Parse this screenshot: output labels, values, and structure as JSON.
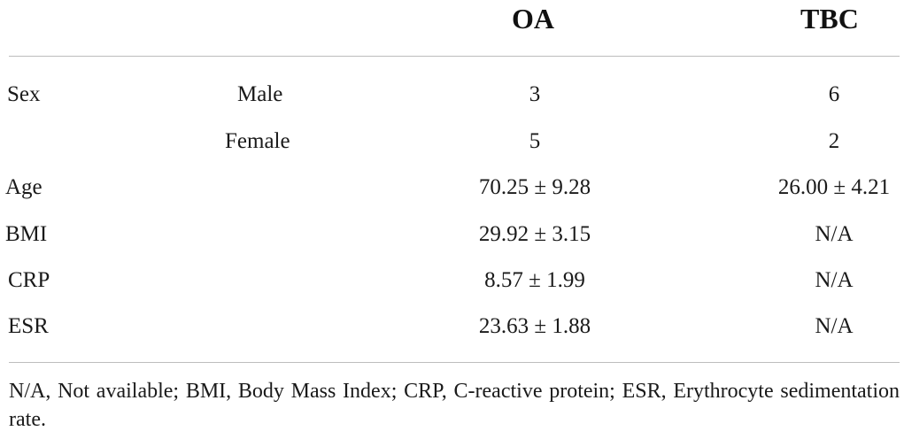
{
  "table": {
    "header": {
      "oa": "OA",
      "tbc": "TBC"
    },
    "rows": [
      {
        "label": "Sex",
        "sub": "Male",
        "oa": "3",
        "tbc": "6"
      },
      {
        "label": "",
        "sub": "Female",
        "oa": "5",
        "tbc": "2"
      },
      {
        "label": "Age",
        "sub": "",
        "oa": "70.25 ± 9.28",
        "tbc": "26.00 ± 4.21"
      },
      {
        "label": "BMI",
        "sub": "",
        "oa": "29.92 ± 3.15",
        "tbc": "N/A"
      },
      {
        "label": "CRP",
        "sub": "",
        "oa": "8.57 ± 1.99",
        "tbc": "N/A"
      },
      {
        "label": "ESR",
        "sub": "",
        "oa": "23.63 ± 1.88",
        "tbc": "N/A"
      }
    ],
    "footnote": "N/A, Not available; BMI, Body Mass Index; CRP, C-reactive protein; ESR, Erythrocyte sedimentation rate."
  }
}
